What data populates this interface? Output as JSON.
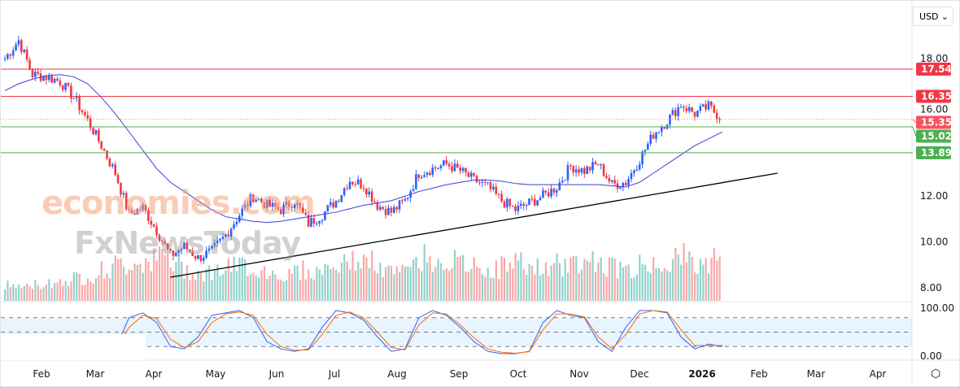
{
  "currency_selector": {
    "value": "USD",
    "icon": "chevron-down-icon"
  },
  "watermark": {
    "line1": "economies.com",
    "line2": "FxNewsToday"
  },
  "settings_icon": "gear-icon",
  "chart_data": {
    "type": "candlestick",
    "price_axis": {
      "ticks": [
        "18.00",
        "12.00",
        "10.00",
        "8.00"
      ],
      "range": [
        8,
        18
      ]
    },
    "oscillator_axis": {
      "ticks": [
        "100.00",
        "0.00"
      ],
      "range": [
        0,
        100
      ],
      "bands": [
        20,
        50,
        80
      ]
    },
    "time_axis": [
      "Feb",
      "Mar",
      "Apr",
      "May",
      "Jun",
      "Jul",
      "Aug",
      "Sep",
      "Oct",
      "Nov",
      "Dec",
      "2026",
      "Feb",
      "Mar",
      "Apr"
    ],
    "levels": [
      {
        "value": 17.54,
        "label": "17.54",
        "color": "#f23645"
      },
      {
        "value": 16.35,
        "label": "16.35",
        "color": "#f23645"
      },
      {
        "value": 15.35,
        "label": "15.35",
        "color": "#f7525f",
        "style": "dotted"
      },
      {
        "value": 15.02,
        "label": "15.02",
        "color": "#4caf50"
      },
      {
        "value": 13.89,
        "label": "13.89",
        "color": "#4caf50"
      }
    ],
    "hidden_tick": "16.00",
    "trendline": {
      "from": [
        12,
        8.46
      ],
      "to": [
        56,
        13.0
      ]
    },
    "weekly_close": [
      18.0,
      18.8,
      17.3,
      17.2,
      17.0,
      16.3,
      15.3,
      14.2,
      13.0,
      11.2,
      11.5,
      10.5,
      9.4,
      9.8,
      9.3,
      9.6,
      10.3,
      11.2,
      12.0,
      11.6,
      11.4,
      11.8,
      10.8,
      11.2,
      11.8,
      12.7,
      12.5,
      11.6,
      11.3,
      11.8,
      13.0,
      13.2,
      13.4,
      13.1,
      12.7,
      12.4,
      11.8,
      11.4,
      11.7,
      12.0,
      12.4,
      13.3,
      13.1,
      13.4,
      12.5,
      12.6,
      13.6,
      14.7,
      15.3,
      16.0,
      15.6,
      15.9,
      15.35
    ],
    "moving_average": [
      16.6,
      16.9,
      17.1,
      17.25,
      17.3,
      17.2,
      16.9,
      16.3,
      15.6,
      14.8,
      14.0,
      13.2,
      12.6,
      12.2,
      11.8,
      11.4,
      11.1,
      11.0,
      10.9,
      10.85,
      10.9,
      11.0,
      11.1,
      11.2,
      11.3,
      11.45,
      11.6,
      11.7,
      11.8,
      12.0,
      12.2,
      12.35,
      12.5,
      12.6,
      12.7,
      12.7,
      12.65,
      12.55,
      12.5,
      12.5,
      12.5,
      12.5,
      12.5,
      12.5,
      12.45,
      12.4,
      12.6,
      13.0,
      13.4,
      13.8,
      14.2,
      14.5,
      14.8
    ],
    "weekly_volume": [
      30,
      28,
      32,
      35,
      40,
      45,
      50,
      60,
      70,
      75,
      80,
      85,
      70,
      60,
      55,
      60,
      65,
      70,
      60,
      55,
      50,
      60,
      55,
      65,
      70,
      80,
      75,
      60,
      55,
      70,
      85,
      80,
      75,
      70,
      65,
      60,
      70,
      75,
      65,
      60,
      70,
      75,
      80,
      70,
      65,
      60,
      70,
      75,
      80,
      85,
      70,
      80,
      75
    ],
    "stochastic_k": [
      40,
      45,
      30,
      25,
      20,
      15,
      10,
      10,
      15,
      80,
      90,
      70,
      20,
      15,
      40,
      85,
      90,
      95,
      80,
      30,
      15,
      10,
      15,
      60,
      95,
      90,
      75,
      40,
      10,
      15,
      80,
      95,
      85,
      60,
      30,
      10,
      5,
      5,
      10,
      70,
      95,
      85,
      80,
      30,
      10,
      60,
      95,
      95,
      90,
      40,
      15,
      25,
      20
    ],
    "stochastic_d": [
      42,
      43,
      35,
      28,
      22,
      17,
      12,
      10,
      13,
      60,
      85,
      78,
      35,
      18,
      30,
      70,
      88,
      92,
      85,
      45,
      20,
      12,
      13,
      45,
      85,
      92,
      80,
      50,
      18,
      13,
      65,
      90,
      88,
      65,
      38,
      15,
      8,
      6,
      9,
      55,
      88,
      88,
      82,
      40,
      15,
      45,
      88,
      95,
      92,
      55,
      22,
      22,
      22
    ]
  }
}
